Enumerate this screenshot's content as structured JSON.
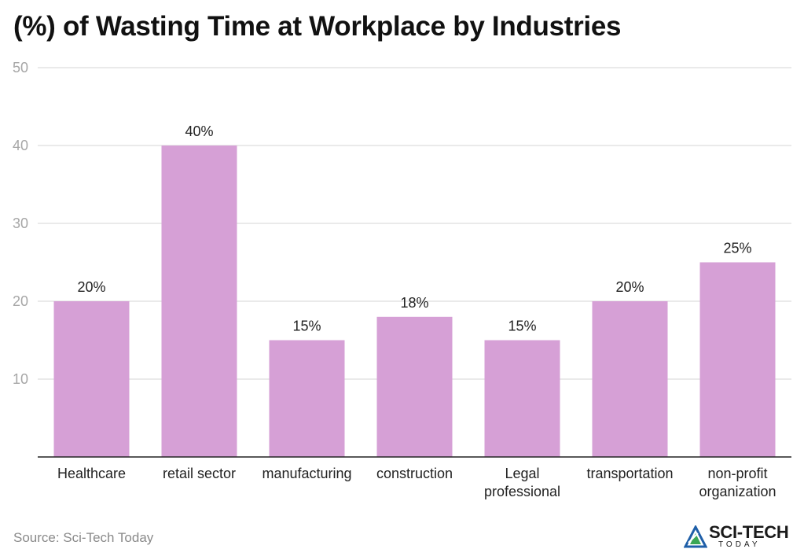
{
  "title": "(%) of Wasting Time at Workplace by Industries",
  "source": "Source: Sci-Tech Today",
  "logo": {
    "main": "SCI-TECH",
    "sub": "TODAY"
  },
  "colors": {
    "bar": "#d6a0d6",
    "grid": "#e3e3e3",
    "axis": "#222222",
    "logo_blue": "#1f5fa8",
    "logo_green": "#3aa655"
  },
  "chart_data": {
    "type": "bar",
    "title": "(%) of Wasting Time at Workplace by Industries",
    "categories": [
      "Healthcare",
      "retail sector",
      "manufacturing",
      "construction",
      "Legal professional",
      "transportation",
      "non-profit organization"
    ],
    "category_lines": [
      [
        "Healthcare"
      ],
      [
        "retail sector"
      ],
      [
        "manufacturing"
      ],
      [
        "construction"
      ],
      [
        "Legal",
        "professional"
      ],
      [
        "transportation"
      ],
      [
        "non-profit",
        "organization"
      ]
    ],
    "values": [
      20,
      40,
      15,
      18,
      15,
      20,
      25
    ],
    "data_labels": [
      "20%",
      "40%",
      "15%",
      "18%",
      "15%",
      "20%",
      "25%"
    ],
    "yticks": [
      10,
      20,
      30,
      40,
      50
    ],
    "ylim": [
      0,
      50
    ],
    "grid": true,
    "xlabel": "",
    "ylabel": ""
  }
}
